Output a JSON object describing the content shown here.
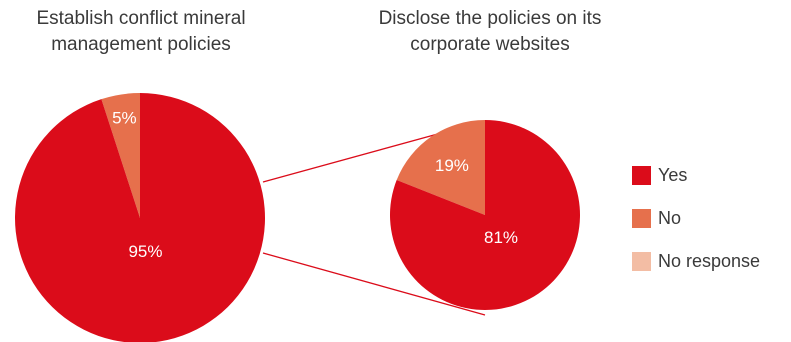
{
  "colors": {
    "yes": "#DB0C1A",
    "no": "#E6704C",
    "no_response": "#F3BDA4"
  },
  "chart_data": [
    {
      "type": "pie",
      "title": "Establish conflict mineral management policies",
      "labels": [
        "Yes",
        "No"
      ],
      "values": [
        95,
        5
      ],
      "data_labels": [
        "95%",
        "5%"
      ]
    },
    {
      "type": "pie",
      "title": "Disclose the policies on its corporate websites",
      "labels": [
        "Yes",
        "No"
      ],
      "values": [
        81,
        19
      ],
      "data_labels": [
        "81%",
        "19%"
      ]
    }
  ],
  "legend": {
    "placement": "right",
    "items": [
      {
        "label": "Yes",
        "color_key": "yes"
      },
      {
        "label": "No",
        "color_key": "no"
      },
      {
        "label": "No response",
        "color_key": "no_response"
      }
    ]
  }
}
